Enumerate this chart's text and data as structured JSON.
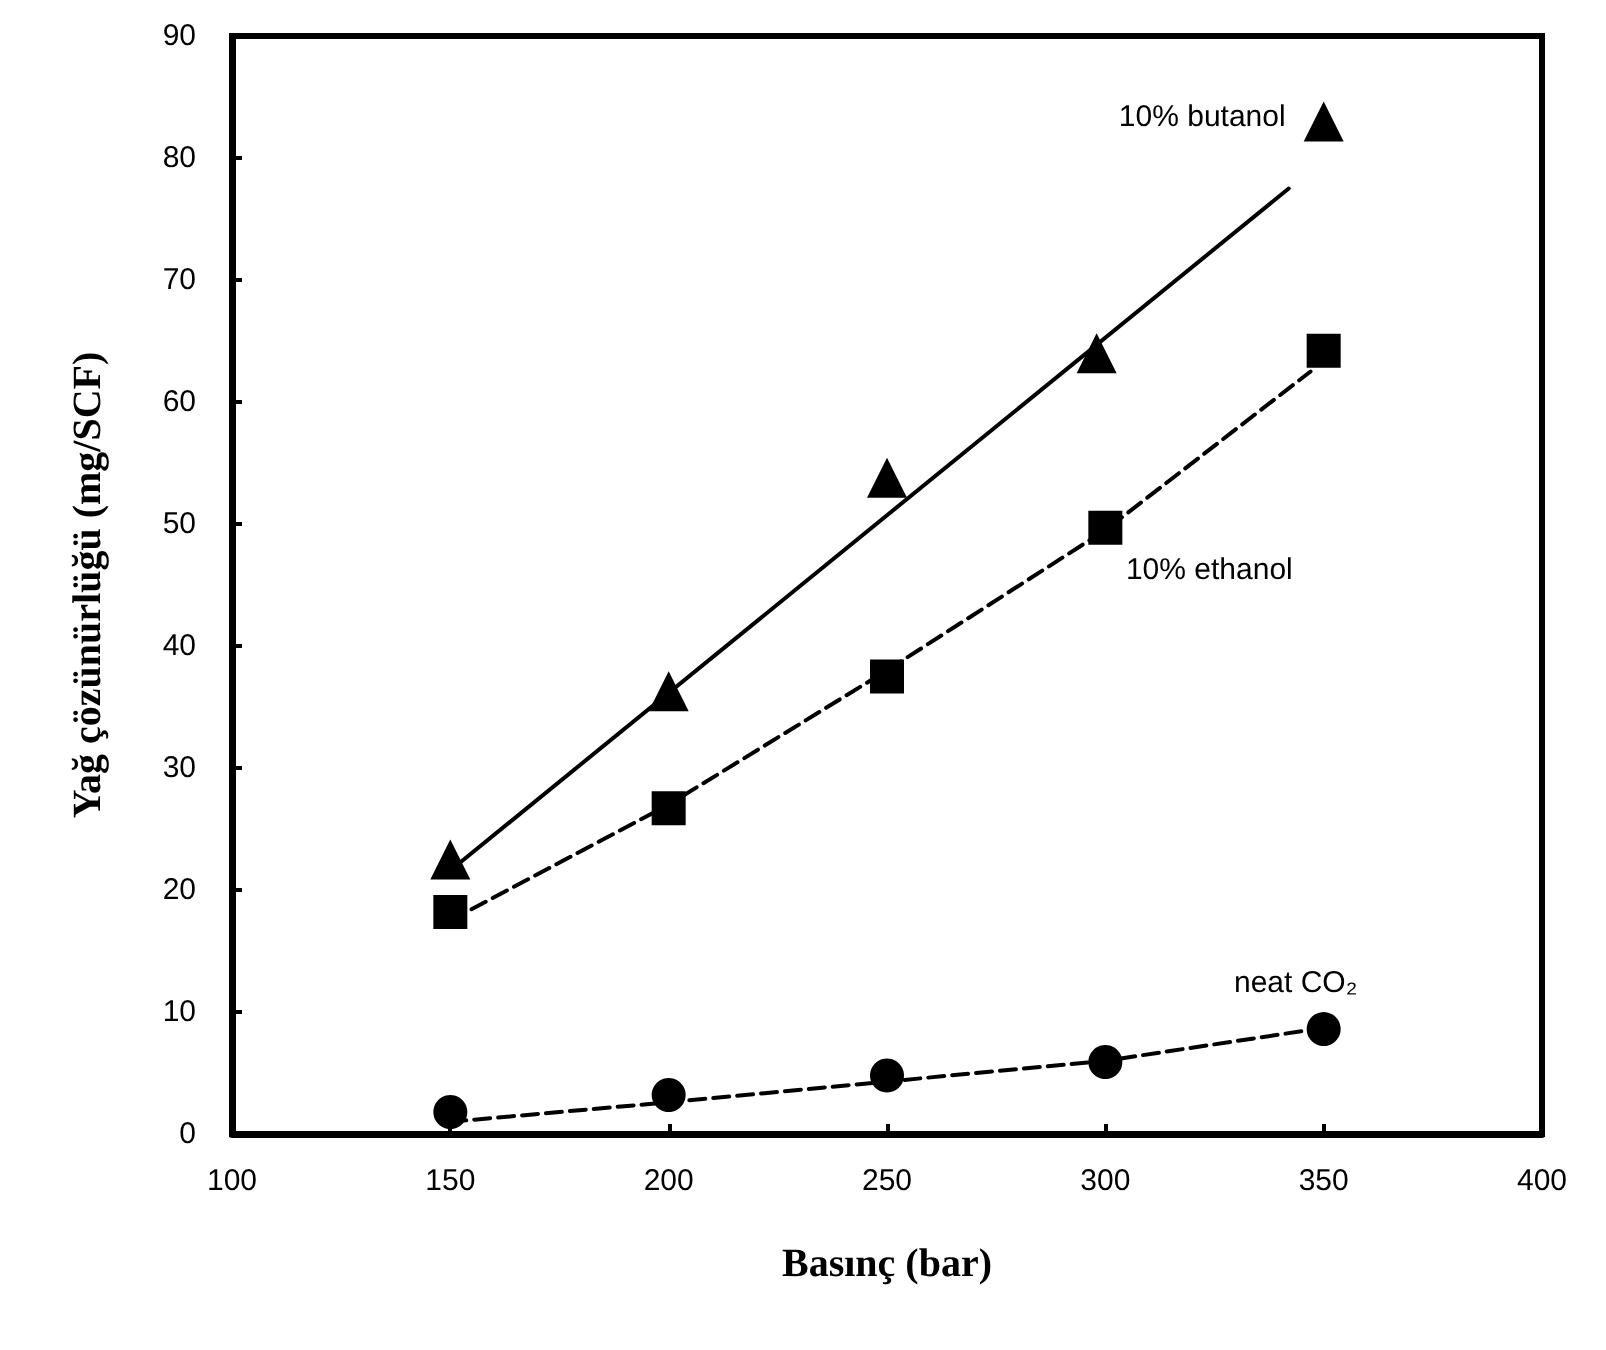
{
  "chart_data": {
    "type": "scatter",
    "xlabel": "Basınç (bar)",
    "ylabel": "Yağ çözünürlüğü (mg/SCF)",
    "xlim": [
      100,
      400
    ],
    "xticks": [
      100,
      150,
      200,
      250,
      300,
      350,
      400
    ],
    "ylim": [
      0,
      90
    ],
    "yticks": [
      0,
      10,
      20,
      30,
      40,
      50,
      60,
      70,
      80,
      90
    ],
    "grid": false,
    "legend": false,
    "series": [
      {
        "name": "10% butanol",
        "marker": "triangle",
        "color": "#000000",
        "x": [
          150,
          200,
          250,
          298,
          350
        ],
        "values": [
          22.5,
          36.3,
          53.8,
          64,
          83
        ]
      },
      {
        "name": "10% ethanol",
        "marker": "square",
        "color": "#000000",
        "x": [
          150,
          200,
          250,
          300,
          350
        ],
        "values": [
          18.2,
          26.7,
          37.5,
          49.7,
          64.2
        ]
      },
      {
        "name": "neat CO₂",
        "marker": "circle",
        "color": "#000000",
        "x": [
          150,
          200,
          250,
          300,
          350
        ],
        "values": [
          1.8,
          3.2,
          4.8,
          5.9,
          8.6
        ]
      },
      {
        "type": "line",
        "line_style": "solid",
        "marker": "none",
        "color": "#000000",
        "x": [
          150,
          342
        ],
        "values": [
          21.6,
          77.5
        ]
      },
      {
        "type": "line",
        "line_style": "dashed",
        "marker": "none",
        "color": "#000000",
        "x": [
          150,
          200,
          250,
          300,
          347
        ],
        "values": [
          17.5,
          27,
          38,
          49.5,
          62.5
        ]
      },
      {
        "type": "line",
        "line_style": "dashed",
        "marker": "none",
        "color": "#000000",
        "x": [
          150,
          200,
          250,
          300,
          350
        ],
        "values": [
          1,
          2.6,
          4.3,
          6,
          8.7
        ]
      }
    ]
  }
}
